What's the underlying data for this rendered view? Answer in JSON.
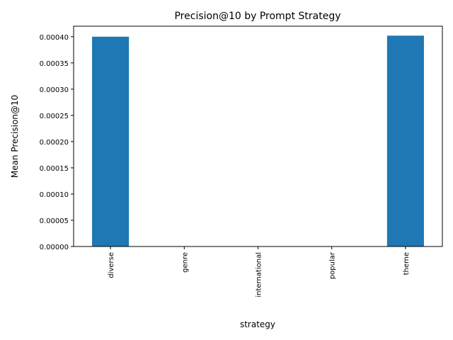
{
  "chart_data": {
    "type": "bar",
    "title": "Precision@10 by Prompt Strategy",
    "xlabel": "strategy",
    "ylabel": "Mean Precision@10",
    "categories": [
      "diverse",
      "genre",
      "international",
      "popular",
      "theme"
    ],
    "values": [
      0.0004,
      0.0,
      0.0,
      0.0,
      0.000402
    ],
    "ylim": [
      0,
      0.00042
    ],
    "yticks": [
      "0.00000",
      "0.00005",
      "0.00010",
      "0.00015",
      "0.00020",
      "0.00025",
      "0.00030",
      "0.00035",
      "0.00040"
    ],
    "bar_color": "#1f77b4",
    "grid": false,
    "legend": "none"
  }
}
